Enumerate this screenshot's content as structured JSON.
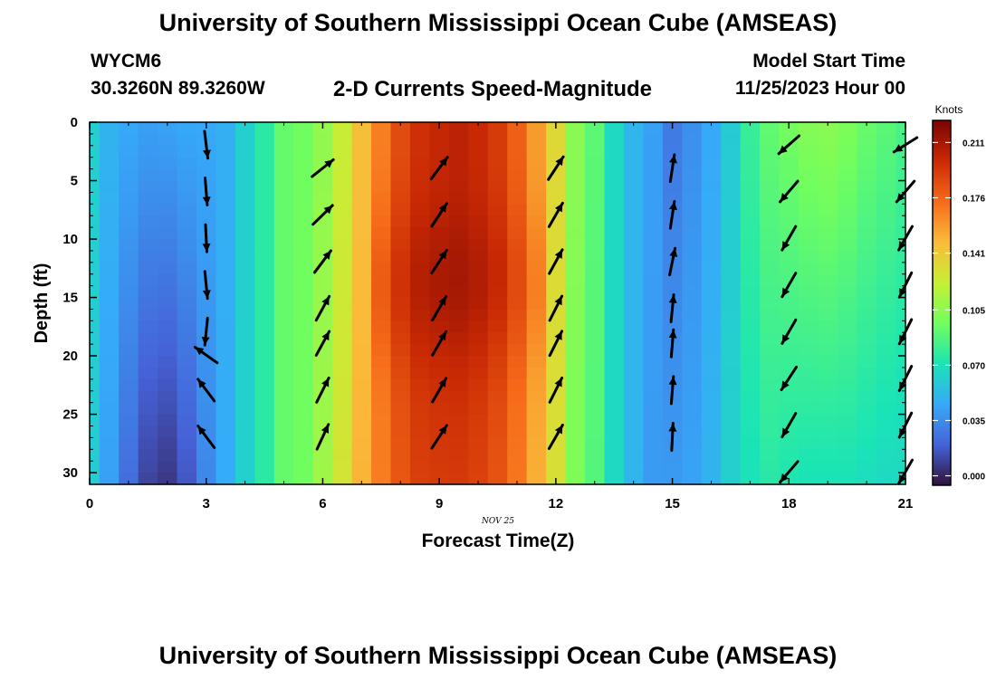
{
  "header": {
    "main_title": "University of Southern Mississippi Ocean Cube (AMSEAS)",
    "station_id": "WYCM6",
    "coordinates": "30.3260N  89.3260W",
    "chart_title": "2-D Currents Speed-Magnitude",
    "model_start_label": "Model Start Time",
    "model_start_value": "11/25/2023 Hour 00"
  },
  "footer": {
    "title": "University of Southern Mississippi Ocean Cube (AMSEAS)"
  },
  "chart_data": {
    "type": "heatmap",
    "title": "2-D Currents Speed-Magnitude",
    "xlabel": "Forecast Time(Z)",
    "ylabel": "Depth (ft)",
    "date_label": "NOV 25",
    "xlim": [
      0,
      21
    ],
    "ylim": [
      0,
      31
    ],
    "xticks": [
      0,
      3,
      6,
      9,
      12,
      15,
      18,
      21
    ],
    "yticks": [
      0,
      5,
      10,
      15,
      20,
      25,
      30
    ],
    "colorbar": {
      "label": "Knots",
      "min": -0.006,
      "max": 0.225,
      "ticks": [
        "0.000",
        "0.035",
        "0.070",
        "0.105",
        "0.141",
        "0.176",
        "0.211"
      ]
    },
    "colors": {
      "c1": "#30123b",
      "c2": "#4662d7",
      "c3": "#36aaf9",
      "c4": "#1ae4b6",
      "c5": "#72fe5e",
      "c6": "#c7ef34",
      "c7": "#fabb3a",
      "c8": "#f66b19",
      "c9": "#ca2a04",
      "c10": "#7a0403"
    },
    "speed_profiles": [
      {
        "t": 0.0,
        "top": 0.062,
        "bottom": 0.06
      },
      {
        "t": 0.5,
        "top": 0.05,
        "bottom": 0.042
      },
      {
        "t": 1.0,
        "top": 0.045,
        "bottom": 0.024
      },
      {
        "t": 1.5,
        "top": 0.042,
        "bottom": 0.01
      },
      {
        "t": 2.0,
        "top": 0.043,
        "bottom": 0.006
      },
      {
        "t": 2.5,
        "top": 0.045,
        "bottom": 0.016
      },
      {
        "t": 3.0,
        "top": 0.045,
        "bottom": 0.033
      },
      {
        "t": 3.5,
        "top": 0.048,
        "bottom": 0.046
      },
      {
        "t": 4.0,
        "top": 0.062,
        "bottom": 0.062
      },
      {
        "t": 4.5,
        "top": 0.076,
        "bottom": 0.076
      },
      {
        "t": 5.0,
        "top": 0.093,
        "bottom": 0.093
      },
      {
        "t": 5.5,
        "top": 0.096,
        "bottom": 0.096
      },
      {
        "t": 6.0,
        "top": 0.106,
        "bottom": 0.11
      },
      {
        "t": 6.5,
        "top": 0.123,
        "bottom": 0.128
      },
      {
        "t": 7.0,
        "top": 0.146,
        "bottom": 0.15
      },
      {
        "t": 7.5,
        "top": 0.167,
        "bottom": 0.168
      },
      {
        "t": 8.0,
        "top": 0.186,
        "bottom": 0.182
      },
      {
        "t": 8.5,
        "top": 0.197,
        "bottom": 0.191
      },
      {
        "t": 9.0,
        "top": 0.201,
        "bottom": 0.193
      },
      {
        "t": 9.5,
        "top": 0.204,
        "bottom": 0.193
      },
      {
        "t": 10.0,
        "top": 0.2,
        "bottom": 0.19
      },
      {
        "t": 10.5,
        "top": 0.193,
        "bottom": 0.183
      },
      {
        "t": 11.0,
        "top": 0.178,
        "bottom": 0.17
      },
      {
        "t": 11.5,
        "top": 0.158,
        "bottom": 0.152
      },
      {
        "t": 12.0,
        "top": 0.134,
        "bottom": 0.13
      },
      {
        "t": 12.5,
        "top": 0.104,
        "bottom": 0.1
      },
      {
        "t": 13.0,
        "top": 0.09,
        "bottom": 0.088
      },
      {
        "t": 13.5,
        "top": 0.066,
        "bottom": 0.066
      },
      {
        "t": 14.0,
        "top": 0.05,
        "bottom": 0.05
      },
      {
        "t": 14.5,
        "top": 0.042,
        "bottom": 0.04
      },
      {
        "t": 15.0,
        "top": 0.028,
        "bottom": 0.04
      },
      {
        "t": 15.5,
        "top": 0.036,
        "bottom": 0.043
      },
      {
        "t": 16.0,
        "top": 0.045,
        "bottom": 0.05
      },
      {
        "t": 16.5,
        "top": 0.06,
        "bottom": 0.062
      },
      {
        "t": 17.0,
        "top": 0.08,
        "bottom": 0.07
      },
      {
        "t": 17.5,
        "top": 0.092,
        "bottom": 0.075
      },
      {
        "t": 18.0,
        "top": 0.097,
        "bottom": 0.072
      },
      {
        "t": 18.5,
        "top": 0.102,
        "bottom": 0.07
      },
      {
        "t": 19.0,
        "top": 0.104,
        "bottom": 0.07
      },
      {
        "t": 19.5,
        "top": 0.1,
        "bottom": 0.07
      },
      {
        "t": 20.0,
        "top": 0.094,
        "bottom": 0.068
      },
      {
        "t": 20.5,
        "top": 0.09,
        "bottom": 0.066
      },
      {
        "t": 21.0,
        "top": 0.085,
        "bottom": 0.065
      }
    ],
    "arrows": [
      {
        "t": 3,
        "dirs": [
          {
            "depth": 1,
            "u": 0.12,
            "v": -1
          },
          {
            "depth": 5,
            "u": 0.08,
            "v": -1
          },
          {
            "depth": 9,
            "u": 0.05,
            "v": -1
          },
          {
            "depth": 13,
            "u": 0.1,
            "v": -1
          },
          {
            "depth": 17,
            "u": -0.1,
            "v": -1
          },
          {
            "depth": 19,
            "u": -0.85,
            "v": 0.6
          },
          {
            "depth": 22,
            "u": -0.6,
            "v": 0.8
          },
          {
            "depth": 26,
            "u": -0.6,
            "v": 0.8
          }
        ]
      },
      {
        "t": 6,
        "dirs": [
          {
            "depth": 3,
            "u": 0.78,
            "v": 0.62
          },
          {
            "depth": 7,
            "u": 0.72,
            "v": 0.7
          },
          {
            "depth": 11,
            "u": 0.6,
            "v": 0.8
          },
          {
            "depth": 15,
            "u": 0.48,
            "v": 0.88
          },
          {
            "depth": 18,
            "u": 0.48,
            "v": 0.88
          },
          {
            "depth": 22,
            "u": 0.45,
            "v": 0.9
          },
          {
            "depth": 26,
            "u": 0.42,
            "v": 0.91
          }
        ]
      },
      {
        "t": 9,
        "dirs": [
          {
            "depth": 3,
            "u": 0.6,
            "v": 0.8
          },
          {
            "depth": 7,
            "u": 0.55,
            "v": 0.84
          },
          {
            "depth": 11,
            "u": 0.55,
            "v": 0.84
          },
          {
            "depth": 15,
            "u": 0.5,
            "v": 0.87
          },
          {
            "depth": 18,
            "u": 0.5,
            "v": 0.87
          },
          {
            "depth": 22,
            "u": 0.5,
            "v": 0.87
          },
          {
            "depth": 26,
            "u": 0.55,
            "v": 0.84
          }
        ]
      },
      {
        "t": 12,
        "dirs": [
          {
            "depth": 3,
            "u": 0.55,
            "v": 0.84
          },
          {
            "depth": 7,
            "u": 0.5,
            "v": 0.87
          },
          {
            "depth": 11,
            "u": 0.48,
            "v": 0.88
          },
          {
            "depth": 15,
            "u": 0.45,
            "v": 0.9
          },
          {
            "depth": 18,
            "u": 0.45,
            "v": 0.9
          },
          {
            "depth": 22,
            "u": 0.45,
            "v": 0.9
          },
          {
            "depth": 26,
            "u": 0.5,
            "v": 0.87
          }
        ]
      },
      {
        "t": 15,
        "dirs": [
          {
            "depth": 3,
            "u": 0.15,
            "v": 0.99
          },
          {
            "depth": 7,
            "u": 0.15,
            "v": 0.99
          },
          {
            "depth": 11,
            "u": 0.2,
            "v": 0.98
          },
          {
            "depth": 15,
            "u": 0.1,
            "v": 1
          },
          {
            "depth": 18,
            "u": 0.08,
            "v": 1
          },
          {
            "depth": 22,
            "u": 0.08,
            "v": 1
          },
          {
            "depth": 26,
            "u": 0.05,
            "v": 1
          }
        ]
      },
      {
        "t": 18,
        "dirs": [
          {
            "depth": 1,
            "u": -0.75,
            "v": -0.66
          },
          {
            "depth": 5,
            "u": -0.65,
            "v": -0.76
          },
          {
            "depth": 9,
            "u": -0.5,
            "v": -0.87
          },
          {
            "depth": 13,
            "u": -0.5,
            "v": -0.87
          },
          {
            "depth": 17,
            "u": -0.5,
            "v": -0.87
          },
          {
            "depth": 21,
            "u": -0.55,
            "v": -0.84
          },
          {
            "depth": 25,
            "u": -0.5,
            "v": -0.87
          },
          {
            "depth": 29,
            "u": -0.65,
            "v": -0.76
          }
        ]
      },
      {
        "t": 21,
        "dirs": [
          {
            "depth": 1,
            "u": -0.85,
            "v": -0.53
          },
          {
            "depth": 5,
            "u": -0.65,
            "v": -0.76
          },
          {
            "depth": 9,
            "u": -0.5,
            "v": -0.87
          },
          {
            "depth": 13,
            "u": -0.45,
            "v": -0.9
          },
          {
            "depth": 17,
            "u": -0.45,
            "v": -0.9
          },
          {
            "depth": 21,
            "u": -0.45,
            "v": -0.9
          },
          {
            "depth": 25,
            "u": -0.45,
            "v": -0.9
          },
          {
            "depth": 29,
            "u": -0.5,
            "v": -0.87
          }
        ]
      }
    ]
  }
}
